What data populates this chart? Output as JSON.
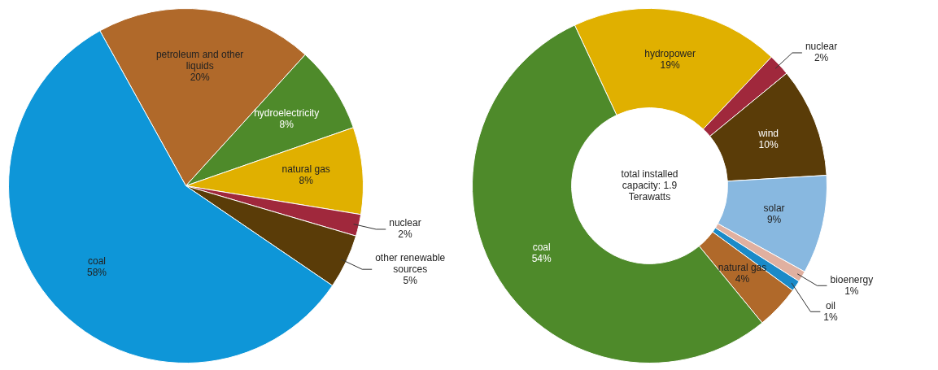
{
  "chart_data": [
    {
      "type": "pie",
      "categories": [
        "petroleum and other liquids",
        "hydroelectricity",
        "natural gas",
        "nuclear",
        "other renewable sources",
        "coal"
      ],
      "values": [
        20,
        8,
        8,
        2,
        5,
        58
      ],
      "value_labels": [
        "20%",
        "8%",
        "8%",
        "2%",
        "5%",
        "58%"
      ],
      "colors": [
        "#b0692a",
        "#4e8a2a",
        "#e0b000",
        "#a0283c",
        "#5a3c08",
        "#0e96d8"
      ]
    },
    {
      "type": "donut",
      "categories": [
        "hydropower",
        "nuclear",
        "wind",
        "solar",
        "bioenergy",
        "oil",
        "natural gas",
        "coal"
      ],
      "values": [
        19,
        2,
        10,
        9,
        1,
        1,
        4,
        54
      ],
      "value_labels": [
        "19%",
        "2%",
        "10%",
        "9%",
        "1%",
        "1%",
        "4%",
        "54%"
      ],
      "colors": [
        "#e0b000",
        "#a0283c",
        "#5a3c08",
        "#88b8e0",
        "#e0b0a0",
        "#1a8ac8",
        "#b0692a",
        "#4e8a2a"
      ],
      "annotations": [
        "total installed capacity: 1.9 Terawatts"
      ]
    }
  ]
}
